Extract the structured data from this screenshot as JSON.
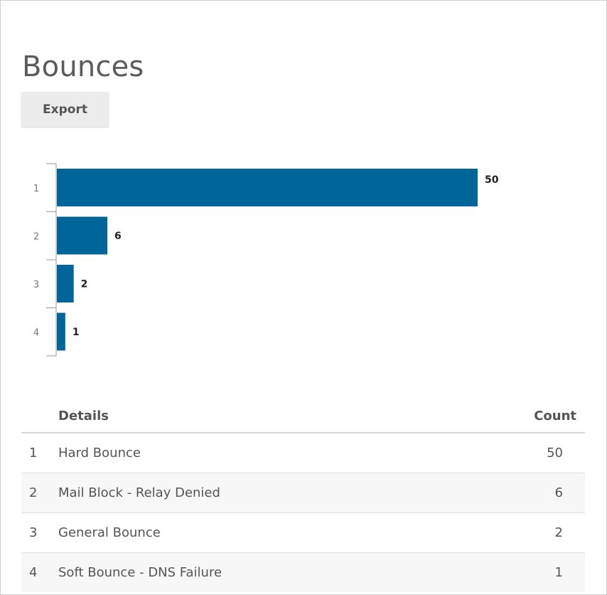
{
  "page": {
    "title": "Bounces"
  },
  "toolbar": {
    "export_label": "Export"
  },
  "colors": {
    "bar": "#006699",
    "axis": "#999999"
  },
  "chart_data": {
    "type": "bar",
    "orientation": "horizontal",
    "categories": [
      "1",
      "2",
      "3",
      "4"
    ],
    "values": [
      50,
      6,
      2,
      1
    ],
    "title": "",
    "xlabel": "",
    "ylabel": "",
    "xlim": [
      0,
      50
    ],
    "grid": false,
    "data_labels": true
  },
  "table": {
    "headers": {
      "num": "",
      "details": "Details",
      "count": "Count"
    },
    "rows": [
      {
        "num": "1",
        "details": "Hard Bounce",
        "count": "50"
      },
      {
        "num": "2",
        "details": "Mail Block - Relay Denied",
        "count": "6"
      },
      {
        "num": "3",
        "details": "General Bounce",
        "count": "2"
      },
      {
        "num": "4",
        "details": "Soft Bounce - DNS Failure",
        "count": "1"
      }
    ]
  }
}
